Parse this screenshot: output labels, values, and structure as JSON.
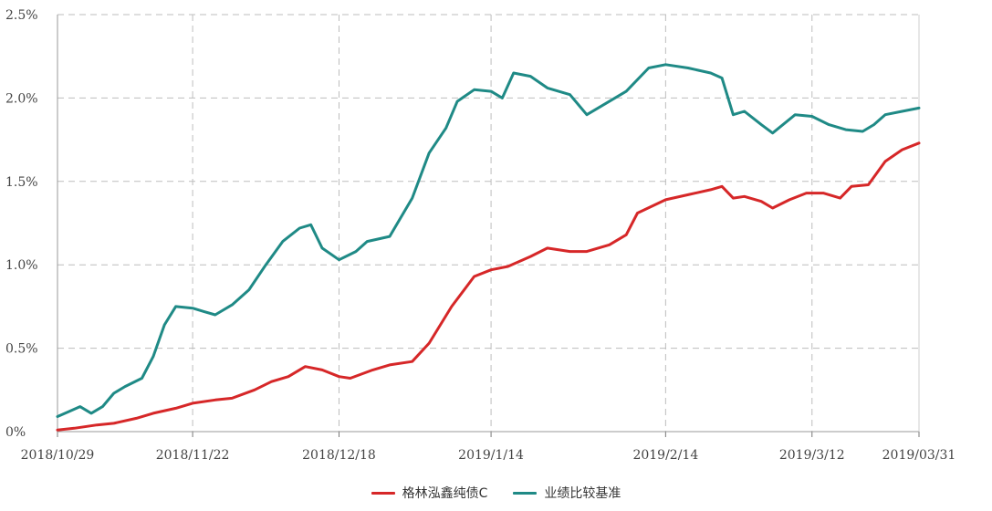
{
  "chart_data": {
    "type": "line",
    "title": "",
    "xlabel": "",
    "ylabel": "",
    "ylim": [
      0,
      2.5
    ],
    "yticks": [
      "0%",
      "0.5%",
      "1.0%",
      "1.5%",
      "2.0%",
      "2.5%"
    ],
    "xtick_labels": [
      "2018/10/29",
      "2018/11/22",
      "2018/12/18",
      "2019/1/14",
      "2019/2/14",
      "2019/3/12",
      "2019/03/31"
    ],
    "xtick_dates": [
      "2018-10-29",
      "2018-11-22",
      "2018-12-18",
      "2019-01-14",
      "2019-02-14",
      "2019-03-12",
      "2019-03-31"
    ],
    "x_range": [
      "2018-10-29",
      "2019-03-31"
    ],
    "grid": true,
    "legend_position": "bottom",
    "series": [
      {
        "name": "格林泓鑫纯债C",
        "color": "#d62728",
        "points": [
          [
            "2018-10-29",
            0.01
          ],
          [
            "2018-11-01",
            0.02
          ],
          [
            "2018-11-05",
            0.04
          ],
          [
            "2018-11-08",
            0.05
          ],
          [
            "2018-11-12",
            0.08
          ],
          [
            "2018-11-15",
            0.11
          ],
          [
            "2018-11-19",
            0.14
          ],
          [
            "2018-11-22",
            0.17
          ],
          [
            "2018-11-26",
            0.19
          ],
          [
            "2018-11-29",
            0.2
          ],
          [
            "2018-12-03",
            0.25
          ],
          [
            "2018-12-06",
            0.3
          ],
          [
            "2018-12-09",
            0.33
          ],
          [
            "2018-12-12",
            0.39
          ],
          [
            "2018-12-15",
            0.37
          ],
          [
            "2018-12-18",
            0.33
          ],
          [
            "2018-12-20",
            0.32
          ],
          [
            "2018-12-24",
            0.37
          ],
          [
            "2018-12-27",
            0.4
          ],
          [
            "2018-12-31",
            0.42
          ],
          [
            "2019-01-03",
            0.53
          ],
          [
            "2019-01-07",
            0.75
          ],
          [
            "2019-01-11",
            0.93
          ],
          [
            "2019-01-14",
            0.97
          ],
          [
            "2019-01-17",
            0.99
          ],
          [
            "2019-01-21",
            1.05
          ],
          [
            "2019-01-24",
            1.1
          ],
          [
            "2019-01-28",
            1.08
          ],
          [
            "2019-01-31",
            1.08
          ],
          [
            "2019-02-04",
            1.12
          ],
          [
            "2019-02-07",
            1.18
          ],
          [
            "2019-02-09",
            1.31
          ],
          [
            "2019-02-14",
            1.39
          ],
          [
            "2019-02-18",
            1.42
          ],
          [
            "2019-02-22",
            1.45
          ],
          [
            "2019-02-24",
            1.47
          ],
          [
            "2019-02-26",
            1.4
          ],
          [
            "2019-02-28",
            1.41
          ],
          [
            "2019-03-03",
            1.38
          ],
          [
            "2019-03-05",
            1.34
          ],
          [
            "2019-03-08",
            1.39
          ],
          [
            "2019-03-11",
            1.43
          ],
          [
            "2019-03-14",
            1.43
          ],
          [
            "2019-03-17",
            1.4
          ],
          [
            "2019-03-19",
            1.47
          ],
          [
            "2019-03-22",
            1.48
          ],
          [
            "2019-03-25",
            1.62
          ],
          [
            "2019-03-28",
            1.69
          ],
          [
            "2019-03-31",
            1.73
          ]
        ]
      },
      {
        "name": "业绩比较基准",
        "color": "#1f8a86",
        "points": [
          [
            "2018-10-29",
            0.09
          ],
          [
            "2018-10-31",
            0.12
          ],
          [
            "2018-11-02",
            0.15
          ],
          [
            "2018-11-04",
            0.11
          ],
          [
            "2018-11-06",
            0.15
          ],
          [
            "2018-11-08",
            0.23
          ],
          [
            "2018-11-10",
            0.27
          ],
          [
            "2018-11-13",
            0.32
          ],
          [
            "2018-11-15",
            0.45
          ],
          [
            "2018-11-17",
            0.64
          ],
          [
            "2018-11-19",
            0.75
          ],
          [
            "2018-11-22",
            0.74
          ],
          [
            "2018-11-24",
            0.72
          ],
          [
            "2018-11-26",
            0.7
          ],
          [
            "2018-11-29",
            0.76
          ],
          [
            "2018-12-02",
            0.85
          ],
          [
            "2018-12-05",
            1.0
          ],
          [
            "2018-12-08",
            1.14
          ],
          [
            "2018-12-11",
            1.22
          ],
          [
            "2018-12-13",
            1.24
          ],
          [
            "2018-12-15",
            1.1
          ],
          [
            "2018-12-18",
            1.03
          ],
          [
            "2018-12-21",
            1.08
          ],
          [
            "2018-12-23",
            1.14
          ],
          [
            "2018-12-27",
            1.17
          ],
          [
            "2018-12-31",
            1.4
          ],
          [
            "2019-01-03",
            1.67
          ],
          [
            "2019-01-06",
            1.82
          ],
          [
            "2019-01-08",
            1.98
          ],
          [
            "2019-01-11",
            2.05
          ],
          [
            "2019-01-14",
            2.04
          ],
          [
            "2019-01-16",
            2.0
          ],
          [
            "2019-01-18",
            2.15
          ],
          [
            "2019-01-21",
            2.13
          ],
          [
            "2019-01-24",
            2.06
          ],
          [
            "2019-01-28",
            2.02
          ],
          [
            "2019-01-31",
            1.9
          ],
          [
            "2019-02-04",
            1.98
          ],
          [
            "2019-02-07",
            2.04
          ],
          [
            "2019-02-11",
            2.18
          ],
          [
            "2019-02-14",
            2.2
          ],
          [
            "2019-02-18",
            2.18
          ],
          [
            "2019-02-22",
            2.15
          ],
          [
            "2019-02-24",
            2.12
          ],
          [
            "2019-02-26",
            1.9
          ],
          [
            "2019-02-28",
            1.92
          ],
          [
            "2019-03-03",
            1.84
          ],
          [
            "2019-03-05",
            1.79
          ],
          [
            "2019-03-09",
            1.9
          ],
          [
            "2019-03-12",
            1.89
          ],
          [
            "2019-03-15",
            1.84
          ],
          [
            "2019-03-18",
            1.81
          ],
          [
            "2019-03-21",
            1.8
          ],
          [
            "2019-03-23",
            1.84
          ],
          [
            "2019-03-25",
            1.9
          ],
          [
            "2019-03-28",
            1.92
          ],
          [
            "2019-03-31",
            1.94
          ]
        ]
      }
    ]
  }
}
